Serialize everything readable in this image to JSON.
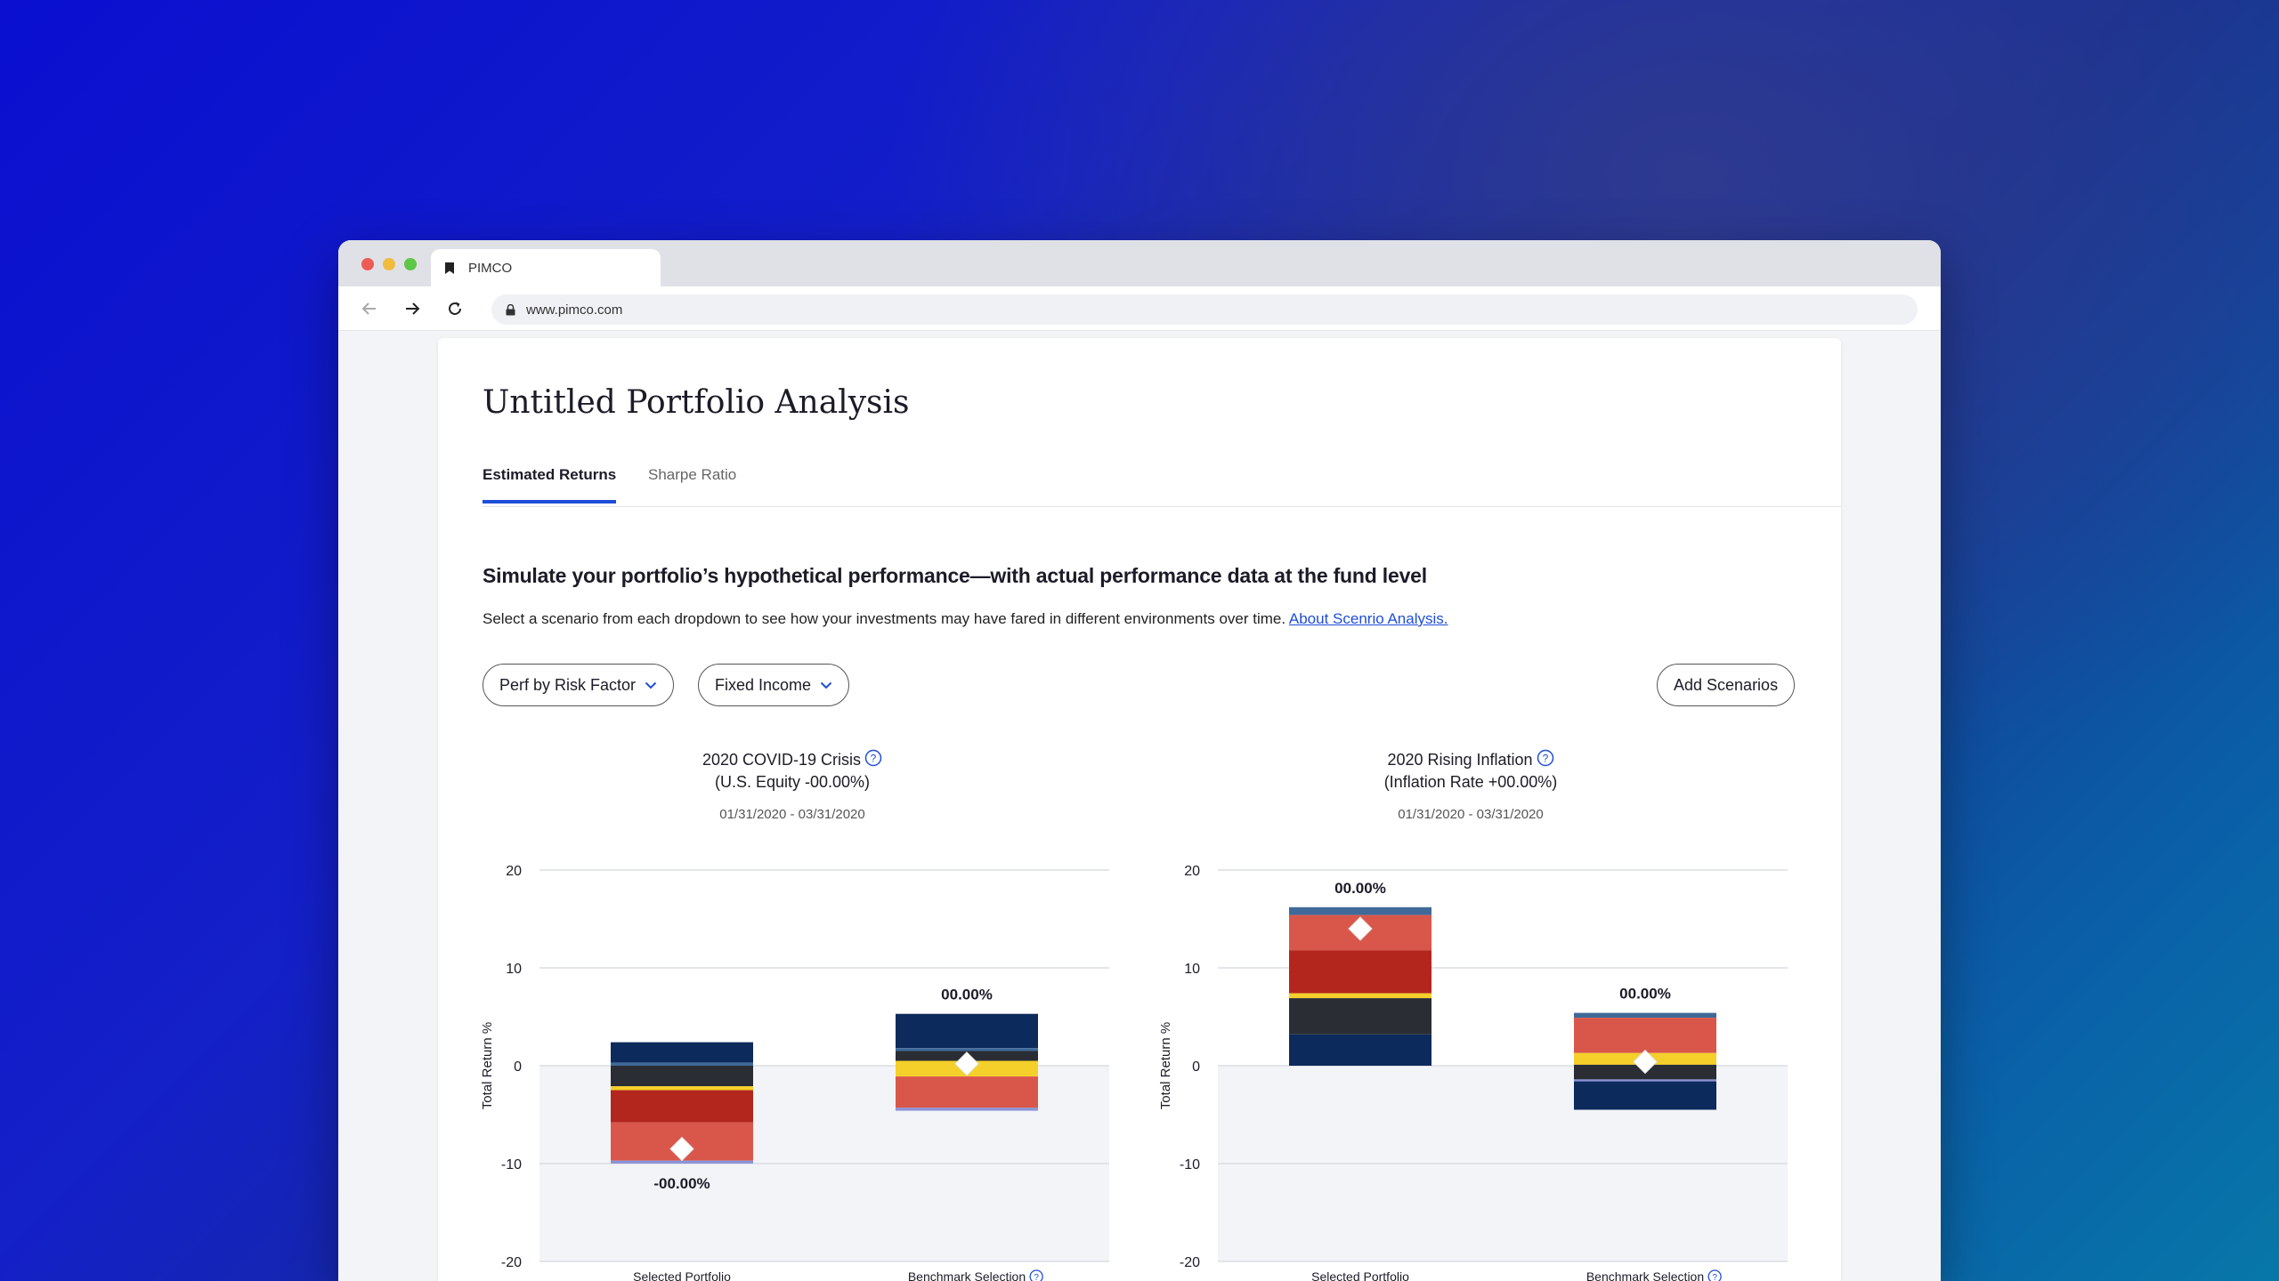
{
  "browser": {
    "tab_title": "PIMCO",
    "url": "www.pimco.com"
  },
  "page": {
    "title": "Untitled Portfolio Analysis",
    "tabs": [
      {
        "label": "Estimated Returns",
        "active": true
      },
      {
        "label": "Sharpe Ratio",
        "active": false
      }
    ],
    "headline": "Simulate your portfolio’s hypothetical performance—with actual performance data at the fund level",
    "description": "Select a scenario from each dropdown to see how your investments may have fared in different environments over time.",
    "description_link": "About Scenrio Analysis.",
    "dropdowns": {
      "perf": "Perf by Risk Factor",
      "asset": "Fixed Income"
    },
    "add_button": "Add Scenarios"
  },
  "colors": {
    "accent": "#1f4ed8",
    "navy": "#0d2a5c",
    "charcoal": "#2a2d34",
    "red_dark": "#b3261e",
    "red_light": "#d9574a",
    "yellow": "#f5d02a",
    "steel": "#3f6a9a",
    "lavender": "#8a94d8"
  },
  "charts": [
    {
      "title_line1": "2020 COVID-19 Crisis",
      "title_line2": "(U.S. Equity -00.00%)",
      "date": "01/31/2020 - 03/31/2020",
      "ylabel": "Total Return %",
      "yticks": [
        "20",
        "10",
        "0",
        "-10",
        "-20"
      ],
      "bars": [
        {
          "label": "Selected Portfolio",
          "value_label": "-00.00%"
        },
        {
          "label": "Benchmark Selection",
          "value_label": "00.00%"
        }
      ]
    },
    {
      "title_line1": "2020 Rising Inflation",
      "title_line2": "(Inflation Rate +00.00%)",
      "date": "01/31/2020 - 03/31/2020",
      "ylabel": "Total Return %",
      "yticks": [
        "20",
        "10",
        "0",
        "-10",
        "-20"
      ],
      "bars": [
        {
          "label": "Selected Portfolio",
          "value_label": "00.00%"
        },
        {
          "label": "Benchmark Selection",
          "value_label": "00.00%"
        }
      ]
    }
  ],
  "chart_data": [
    {
      "type": "bar",
      "title": "2020 COVID-19 Crisis (U.S. Equity -00.00%)",
      "ylabel": "Total Return %",
      "ylim": [
        -20,
        20
      ],
      "categories": [
        "Selected Portfolio",
        "Benchmark Selection"
      ],
      "stacks": [
        {
          "category": "Selected Portfolio",
          "marker": -8.5,
          "segments": [
            {
              "color": "navy",
              "from": 0.3,
              "to": 2.4
            },
            {
              "color": "steel",
              "from": 0.0,
              "to": 0.3
            },
            {
              "color": "charcoal",
              "from": -2.1,
              "to": 0.0
            },
            {
              "color": "yellow",
              "from": -2.5,
              "to": -2.1
            },
            {
              "color": "red_dark",
              "from": -5.8,
              "to": -2.5
            },
            {
              "color": "red_light",
              "from": -9.7,
              "to": -5.8
            },
            {
              "color": "lavender",
              "from": -10.0,
              "to": -9.7
            }
          ]
        },
        {
          "category": "Benchmark Selection",
          "marker": 0.2,
          "segments": [
            {
              "color": "navy",
              "from": 1.8,
              "to": 5.3
            },
            {
              "color": "steel",
              "from": 1.5,
              "to": 1.8
            },
            {
              "color": "charcoal",
              "from": 0.5,
              "to": 1.5
            },
            {
              "color": "yellow",
              "from": -1.1,
              "to": 0.5
            },
            {
              "color": "red_light",
              "from": -4.3,
              "to": -1.1
            },
            {
              "color": "lavender",
              "from": -4.6,
              "to": -4.3
            }
          ]
        }
      ]
    },
    {
      "type": "bar",
      "title": "2020 Rising Inflation (Inflation Rate +00.00%)",
      "ylabel": "Total Return %",
      "ylim": [
        -20,
        20
      ],
      "categories": [
        "Selected Portfolio",
        "Benchmark Selection"
      ],
      "stacks": [
        {
          "category": "Selected Portfolio",
          "marker": 14.0,
          "segments": [
            {
              "color": "steel",
              "from": 15.4,
              "to": 16.2
            },
            {
              "color": "red_light",
              "from": 11.8,
              "to": 15.4
            },
            {
              "color": "red_dark",
              "from": 7.4,
              "to": 11.8
            },
            {
              "color": "yellow",
              "from": 6.9,
              "to": 7.4
            },
            {
              "color": "charcoal",
              "from": 3.2,
              "to": 6.9
            },
            {
              "color": "navy",
              "from": 0.0,
              "to": 3.2
            }
          ]
        },
        {
          "category": "Benchmark Selection",
          "marker": 0.4,
          "segments": [
            {
              "color": "steel",
              "from": 4.9,
              "to": 5.4
            },
            {
              "color": "red_light",
              "from": 1.3,
              "to": 4.9
            },
            {
              "color": "yellow",
              "from": 0.1,
              "to": 1.3
            },
            {
              "color": "charcoal",
              "from": -1.4,
              "to": 0.1
            },
            {
              "color": "lavender",
              "from": -1.6,
              "to": -1.4
            },
            {
              "color": "navy",
              "from": -4.5,
              "to": -1.6
            }
          ]
        }
      ]
    }
  ]
}
